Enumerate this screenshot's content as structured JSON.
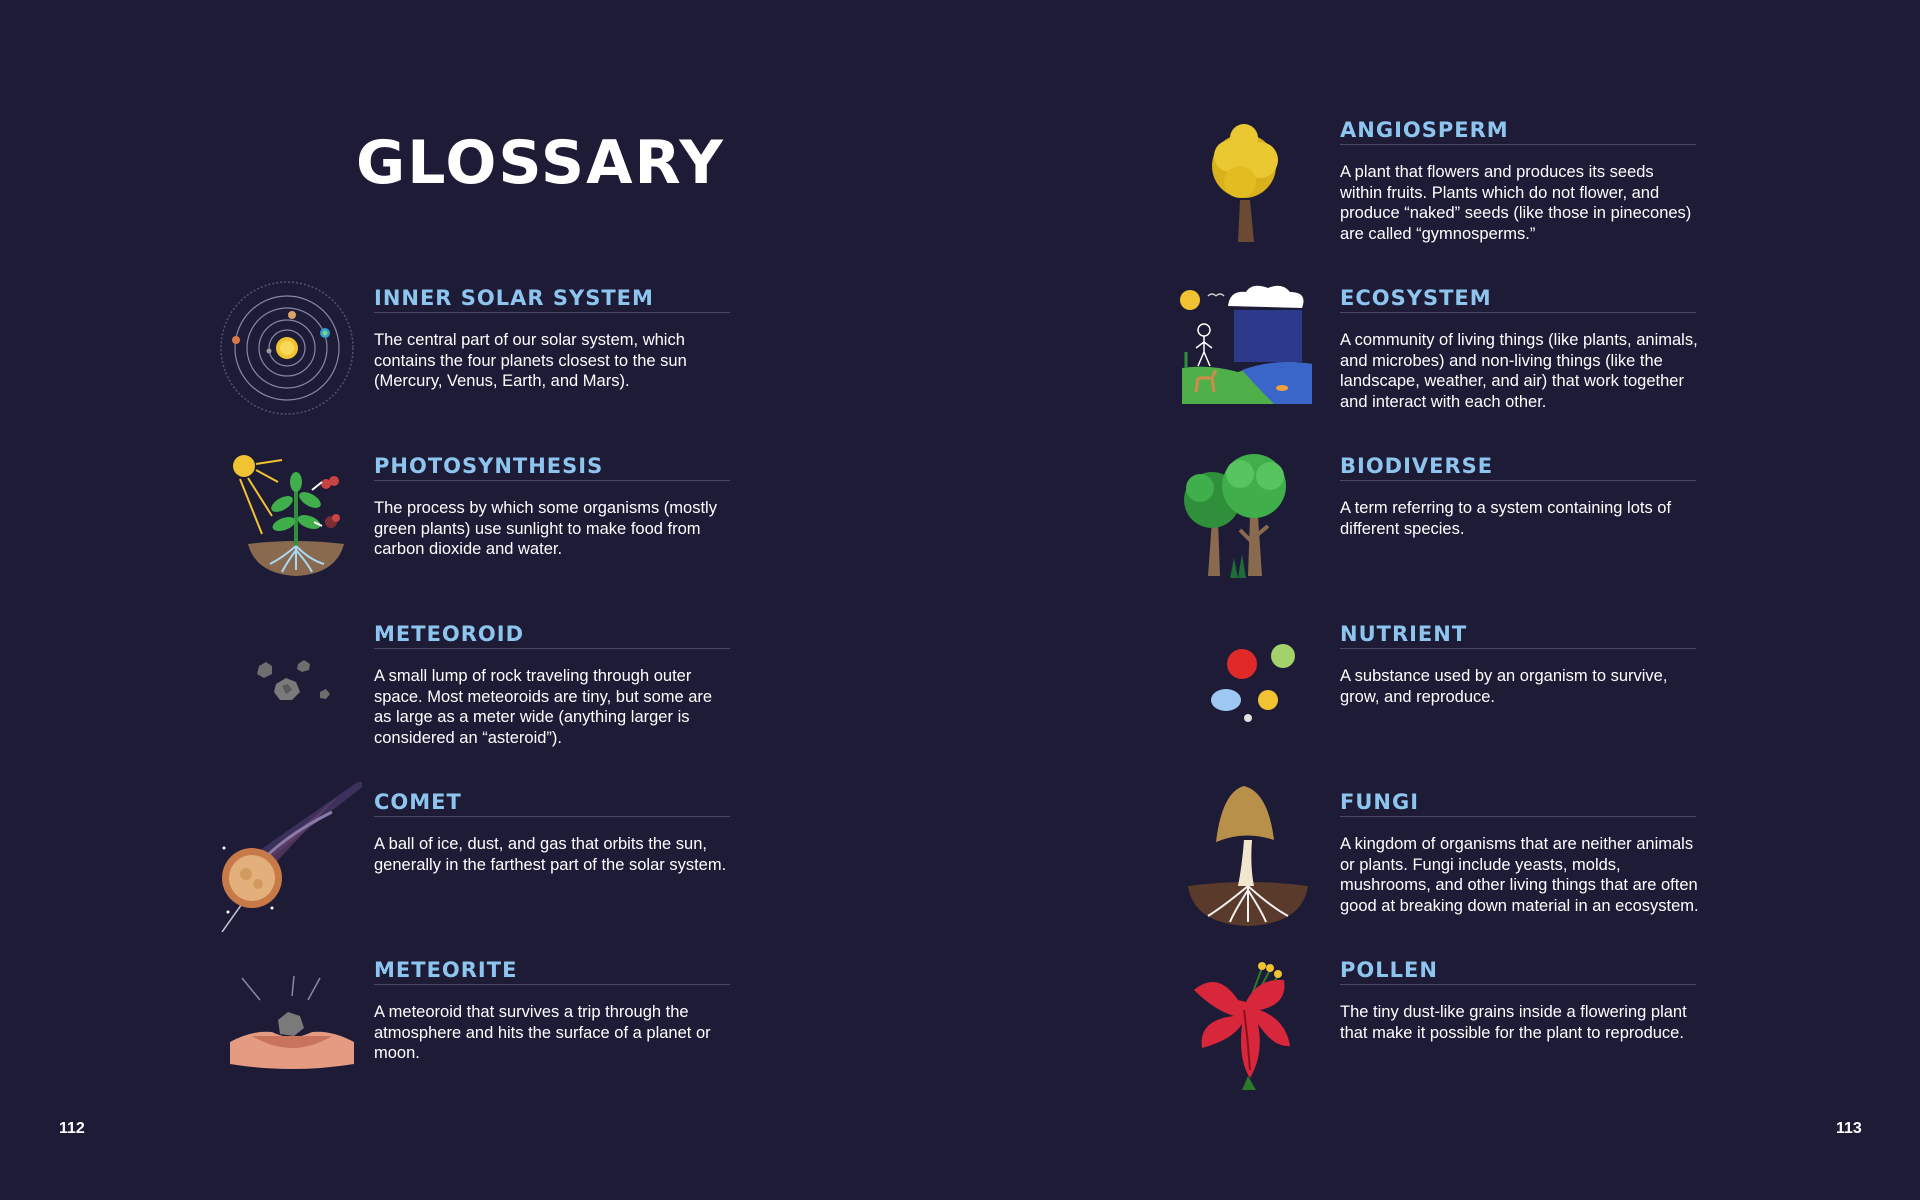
{
  "title": "GLOSSARY",
  "left_page": {
    "page_number": "112",
    "entries": [
      {
        "term": "INNER SOLAR SYSTEM",
        "definition": "The central part of our solar system, which contains the four planets closest to the sun (Mercury, Venus, Earth, and Mars).",
        "icon": "solar-system-icon"
      },
      {
        "term": "PHOTOSYNTHESIS",
        "definition": "The process by which some organisms (mostly green plants) use sunlight to make food from carbon dioxide and water.",
        "icon": "plant-sun-icon"
      },
      {
        "term": "METEOROID",
        "definition": "A small lump of rock traveling through outer space. Most meteoroids are tiny, but some are as large as a meter wide (anything larger is considered an “asteroid”).",
        "icon": "meteoroid-rocks-icon"
      },
      {
        "term": "COMET",
        "definition": "A ball of ice, dust, and gas that orbits the sun, generally in the farthest part of the solar system.",
        "icon": "comet-icon"
      },
      {
        "term": "METEORITE",
        "definition": "A meteoroid that survives a trip through the atmosphere and hits the surface of a planet or moon.",
        "icon": "meteorite-crater-icon"
      }
    ]
  },
  "right_page": {
    "page_number": "113",
    "entries": [
      {
        "term": "ANGIOSPERM",
        "definition": "A plant that flowers and produces its seeds within fruits. Plants which do not flower, and produce “naked” seeds (like those in pinecones) are called “gymnosperms.”",
        "icon": "yellow-tree-icon"
      },
      {
        "term": "ECOSYSTEM",
        "definition": "A community of living things (like plants, animals, and microbes) and non-living things (like the landscape, weather, and air) that work together and interact with each other.",
        "icon": "ecosystem-scene-icon"
      },
      {
        "term": "BIODIVERSE",
        "definition": "A term referring to a system containing lots of different species.",
        "icon": "forest-trees-icon"
      },
      {
        "term": "NUTRIENT",
        "definition": "A substance used by an organism to survive, grow, and reproduce.",
        "icon": "nutrient-dots-icon"
      },
      {
        "term": "FUNGI",
        "definition": "A kingdom of organisms that are neither animals or plants. Fungi include yeasts, molds, mushrooms, and other living things that are often good at breaking down material in an ecosystem.",
        "icon": "mushroom-icon"
      },
      {
        "term": "POLLEN",
        "definition": "The tiny dust-like grains inside a flowering plant that make it possible for the plant to reproduce.",
        "icon": "red-flower-icon"
      }
    ]
  },
  "colors": {
    "background": "#1d1b36",
    "term": "#8ec5ee",
    "text": "#ffffff"
  }
}
